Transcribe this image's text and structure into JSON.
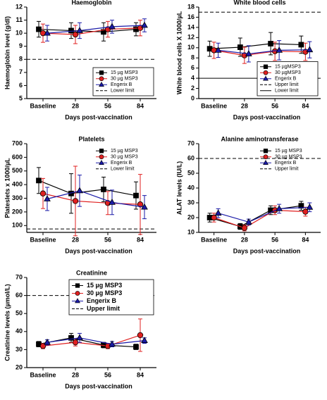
{
  "chart_data": [
    {
      "type": "line",
      "title": "Haemoglobin",
      "y_label": "Haemoglobin level (g/dl)",
      "x_label": "Days post-vaccination",
      "categories": [
        "Baseline",
        "28",
        "56",
        "84"
      ],
      "ylim": [
        5,
        12
      ],
      "yticks": [
        5,
        6,
        7,
        8,
        9,
        10,
        11,
        12
      ],
      "legend": "lower right",
      "legend_frame": true,
      "series": [
        {
          "name": "15 µg MSP3",
          "color": "#000000",
          "marker": "square",
          "values": [
            10.3,
            10.2,
            10.1,
            10.3
          ],
          "errors": [
            0.6,
            0.6,
            0.7,
            0.5
          ]
        },
        {
          "name": "30 µg MSP3",
          "color": "#e02020",
          "marker": "circle",
          "values": [
            10.0,
            9.9,
            10.3,
            10.4
          ],
          "errors": [
            0.7,
            0.7,
            0.6,
            0.6
          ]
        },
        {
          "name": "Engerix B",
          "color": "#1a1aa8",
          "marker": "triangle",
          "values": [
            10.0,
            10.2,
            10.5,
            10.6
          ],
          "errors": [
            0.6,
            0.6,
            0.5,
            0.5
          ]
        }
      ],
      "ref_lines": [
        {
          "name": "Lower limit",
          "value": 8,
          "dash": "dashed"
        }
      ]
    },
    {
      "type": "line",
      "title": "White blood cells",
      "y_label": "White blood cells X 1000/µL",
      "x_label": "Days post-vaccination",
      "categories": [
        "Baseline",
        "28",
        "56",
        "84"
      ],
      "ylim": [
        0,
        18
      ],
      "yticks": [
        0,
        2,
        4,
        6,
        8,
        10,
        12,
        14,
        16,
        18
      ],
      "legend": "lower right",
      "legend_frame": true,
      "series": [
        {
          "name": "15 µgMSP3",
          "color": "#000000",
          "marker": "square",
          "values": [
            9.8,
            10.1,
            10.8,
            10.6
          ],
          "errors": [
            1.5,
            1.8,
            2.2,
            1.7
          ]
        },
        {
          "name": "30 µgMSP3",
          "color": "#e02020",
          "marker": "circle",
          "values": [
            9.5,
            8.5,
            9.3,
            9.2
          ],
          "errors": [
            1.6,
            1.6,
            1.8,
            1.7
          ]
        },
        {
          "name": "Engerix B",
          "color": "#1a1aa8",
          "marker": "triangle",
          "values": [
            9.5,
            8.8,
            9.5,
            9.6
          ],
          "errors": [
            1.4,
            1.6,
            1.9,
            1.6
          ]
        }
      ],
      "ref_lines": [
        {
          "name": "Upper limit",
          "value": 17,
          "dash": "dashed"
        },
        {
          "name": "Lower limit",
          "value": 4,
          "dash": "solid"
        }
      ]
    },
    {
      "type": "line",
      "title": "Platelets",
      "y_label": "Plateslets x 1000/µL",
      "x_label": "Days post-vaccination",
      "categories": [
        "Baseline",
        "28",
        "56",
        "84"
      ],
      "ylim": [
        50,
        700
      ],
      "yticks": [
        100,
        200,
        300,
        400,
        500,
        600,
        700
      ],
      "legend": "upper right",
      "legend_frame": false,
      "series": [
        {
          "name": "15 µg MSP3",
          "color": "#000000",
          "marker": "square",
          "values": [
            430,
            335,
            365,
            320
          ],
          "errors": [
            95,
            145,
            90,
            100
          ]
        },
        {
          "name": "30 µg MSP3",
          "color": "#e02020",
          "marker": "circle",
          "values": [
            335,
            280,
            265,
            255
          ],
          "errors": [
            110,
            255,
            85,
            220
          ]
        },
        {
          "name": "Engerix B",
          "color": "#1a1aa8",
          "marker": "triangle",
          "values": [
            295,
            355,
            270,
            235
          ],
          "errors": [
            85,
            115,
            90,
            85
          ]
        }
      ],
      "ref_lines": [
        {
          "name": "Lower limit",
          "value": 75,
          "dash": "dashed"
        }
      ]
    },
    {
      "type": "line",
      "title": "Alanine aminotransferase",
      "y_label": "ALAT levels (IU/L)",
      "x_label": "Days post-vaccination",
      "categories": [
        "Baseline",
        "28",
        "56",
        "84"
      ],
      "ylim": [
        10,
        70
      ],
      "yticks": [
        10,
        20,
        30,
        40,
        50,
        60,
        70
      ],
      "legend": "upper right",
      "legend_frame": false,
      "series": [
        {
          "name": "15  µg MSP3",
          "color": "#000000",
          "marker": "square",
          "values": [
            20,
            14,
            25,
            28
          ],
          "errors": [
            3,
            2,
            3,
            3
          ]
        },
        {
          "name": "30  µg MSP3",
          "color": "#e02020",
          "marker": "circle",
          "values": [
            20,
            13,
            25,
            24
          ],
          "errors": [
            3,
            2,
            3,
            3
          ]
        },
        {
          "name": "Engerix B",
          "color": "#1a1aa8",
          "marker": "triangle",
          "values": [
            23,
            17,
            26,
            27
          ],
          "errors": [
            3,
            2,
            3,
            3
          ]
        }
      ],
      "ref_lines": [
        {
          "name": "Upper limit",
          "value": 60,
          "dash": "dashed"
        }
      ]
    },
    {
      "type": "line",
      "title": "Creatinine",
      "y_label": "Creatinine levels (µmol/L)",
      "x_label": "Days post-vaccination",
      "categories": [
        "Baseline",
        "28",
        "56",
        "84"
      ],
      "ylim": [
        20,
        70
      ],
      "yticks": [
        20,
        30,
        40,
        50,
        60,
        70
      ],
      "legend": "upper right",
      "legend_frame": true,
      "series": [
        {
          "name": "15  µg MSP3",
          "color": "#000000",
          "marker": "square",
          "values": [
            33,
            36.5,
            32.5,
            31.5
          ],
          "errors": [
            1.5,
            2.5,
            1.5,
            1.5
          ]
        },
        {
          "name": "30  µg MSP3",
          "color": "#e02020",
          "marker": "circle",
          "values": [
            32,
            34,
            32,
            38
          ],
          "errors": [
            1.5,
            2,
            1.5,
            9
          ]
        },
        {
          "name": "Engerix B",
          "color": "#1a1aa8",
          "marker": "triangle",
          "values": [
            34,
            36.5,
            33,
            35
          ],
          "errors": [
            1.5,
            2.5,
            1.5,
            1.5
          ]
        }
      ],
      "ref_lines": [
        {
          "name": "Upper limit",
          "value": 60,
          "dash": "dashed"
        }
      ]
    }
  ]
}
